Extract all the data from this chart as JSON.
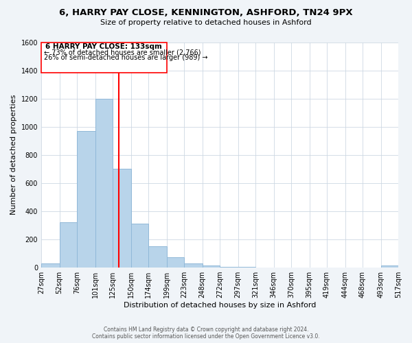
{
  "title": "6, HARRY PAY CLOSE, KENNINGTON, ASHFORD, TN24 9PX",
  "subtitle": "Size of property relative to detached houses in Ashford",
  "xlabel": "Distribution of detached houses by size in Ashford",
  "ylabel": "Number of detached properties",
  "bar_color": "#b8d4ea",
  "bar_edge_color": "#90b8d8",
  "vline_x": 133,
  "vline_color": "red",
  "annotation_line1": "6 HARRY PAY CLOSE: 133sqm",
  "annotation_line2": "← 73% of detached houses are smaller (2,766)",
  "annotation_line3": "26% of semi-detached houses are larger (989) →",
  "bin_edges": [
    27,
    52,
    76,
    101,
    125,
    150,
    174,
    199,
    223,
    248,
    272,
    297,
    321,
    346,
    370,
    395,
    419,
    444,
    468,
    493,
    517
  ],
  "bin_counts": [
    28,
    320,
    970,
    1200,
    700,
    310,
    150,
    75,
    30,
    15,
    5,
    5,
    2,
    2,
    2,
    2,
    2,
    2,
    2,
    15
  ],
  "ylim": [
    0,
    1600
  ],
  "yticks": [
    0,
    200,
    400,
    600,
    800,
    1000,
    1200,
    1400,
    1600
  ],
  "footer_line1": "Contains HM Land Registry data © Crown copyright and database right 2024.",
  "footer_line2": "Contains public sector information licensed under the Open Government Licence v3.0.",
  "background_color": "#f0f4f8",
  "plot_bg_color": "#ffffff"
}
